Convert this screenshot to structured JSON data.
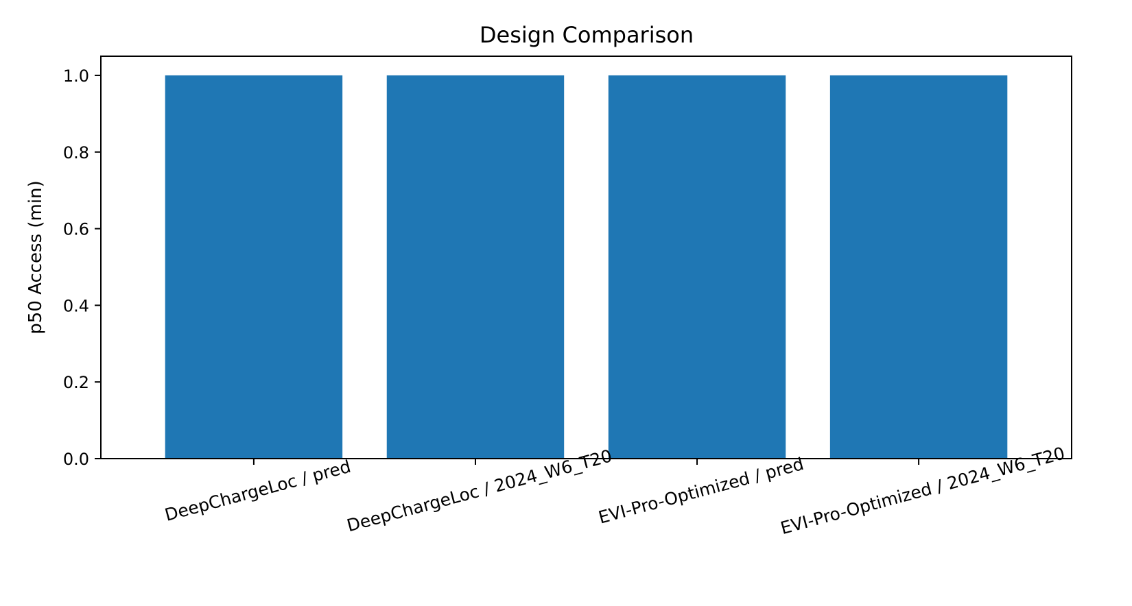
{
  "chart_data": {
    "type": "bar",
    "title": "Design Comparison",
    "xlabel": "",
    "ylabel": "p50 Access (min)",
    "categories": [
      "DeepChargeLoc / pred",
      "DeepChargeLoc / 2024_W6_T20",
      "EVI-Pro-Optimized / pred",
      "EVI-Pro-Optimized / 2024_W6_T20"
    ],
    "values": [
      1.0,
      1.0,
      1.0,
      1.0
    ],
    "ylim": [
      0,
      1.05
    ],
    "yticks": [
      0.0,
      0.2,
      0.4,
      0.6,
      0.8,
      1.0
    ],
    "ytick_labels": [
      "0.0",
      "0.2",
      "0.4",
      "0.6",
      "0.8",
      "1.0"
    ],
    "x_tick_label_rotation_deg": 15,
    "bar_color": "#1f77b4",
    "grid": false,
    "legend": "none"
  }
}
